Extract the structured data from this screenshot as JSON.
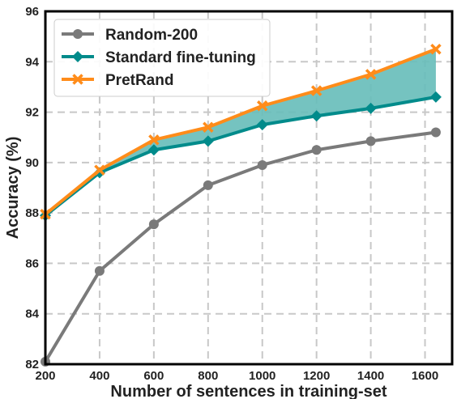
{
  "chart_data": {
    "type": "line",
    "title": "",
    "xlabel": "Number of sentences in training-set",
    "ylabel": "Accuracy (%)",
    "xlim": [
      200,
      1700
    ],
    "ylim": [
      82,
      96
    ],
    "x_ticks": [
      200,
      400,
      600,
      800,
      1000,
      1200,
      1400,
      1600
    ],
    "y_ticks": [
      82,
      84,
      86,
      88,
      90,
      92,
      94,
      96
    ],
    "grid": true,
    "legend_position": "top-left",
    "series": [
      {
        "name": "Random-200",
        "color": "#7a7a7a",
        "marker": "circle",
        "x": [
          200,
          400,
          600,
          800,
          1000,
          1200,
          1400,
          1640
        ],
        "y": [
          82.1,
          85.7,
          87.55,
          89.1,
          89.9,
          90.5,
          90.85,
          91.2
        ]
      },
      {
        "name": "Standard fine-tuning",
        "color": "#008b8b",
        "marker": "diamond",
        "x": [
          200,
          400,
          600,
          800,
          1000,
          1200,
          1400,
          1640
        ],
        "y": [
          87.9,
          89.6,
          90.5,
          90.85,
          91.5,
          91.85,
          92.15,
          92.6
        ]
      },
      {
        "name": "PretRand",
        "color": "#ff8c1a",
        "marker": "x",
        "x": [
          200,
          400,
          600,
          800,
          1000,
          1200,
          1400,
          1640
        ],
        "y": [
          87.95,
          89.7,
          90.9,
          91.4,
          92.25,
          92.85,
          93.5,
          94.5
        ]
      }
    ],
    "shaded_region": {
      "between": [
        "Standard fine-tuning",
        "PretRand"
      ],
      "color": "#66bdb9"
    }
  }
}
